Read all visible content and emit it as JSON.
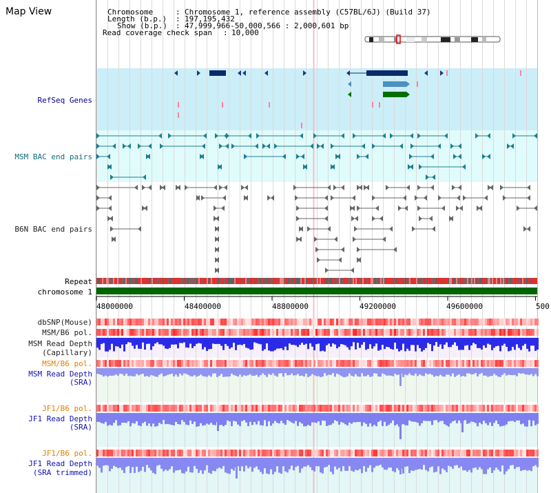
{
  "page_title": "Map View",
  "info": {
    "chromosome_label": "Chromosome",
    "chromosome_value": "Chromosome 1, reference assembly (C57BL/6J) (Build 37)",
    "length_label": "Length (b.p.)",
    "length_value": "197,195,432",
    "show_label": "Show (b.p.)",
    "show_value": "47,999,966-50,000,566 : 2,000,601 bp",
    "coverage_label": "Read coverage check span",
    "coverage_value": "10,000"
  },
  "tracks": {
    "refseq": "RefSeq Genes",
    "msm_bac": "MSM BAC end pairs",
    "b6n_bac": "B6N BAC end pairs",
    "repeat": "Repeat",
    "chromosome": "chromosome 1",
    "dbsnp": "dbSNP(Mouse)",
    "msm_b6_pol_1": "MSM/B6 pol.",
    "msm_read_depth_cap_1": "MSM Read Depth",
    "msm_read_depth_cap_2": "(Capillary)",
    "msm_b6_pol_2": "MSM/B6 pol.",
    "msm_read_depth_sra_1": "MSM Read Depth",
    "msm_read_depth_sra_2": "(SRA)",
    "jf1_b6_pol_1": "JF1/B6 pol.",
    "jf1_read_depth_sra_1": "JF1 Read Depth",
    "jf1_read_depth_sra_2": "(SRA)",
    "jf1_b6_pol_2": "JF1/B6 pol.",
    "jf1_read_depth_trim_1": "JF1 Read Depth",
    "jf1_read_depth_trim_2": "(SRA trimmed)"
  },
  "axis": {
    "ticks": [
      "48000000",
      "48400000",
      "48800000",
      "49200000",
      "49600000",
      "500"
    ]
  },
  "colors": {
    "refseq_bg": "#cceef8",
    "msm_bg": "#e0fbfb",
    "sra_bg": "#eef8ee",
    "jf1_bg": "#e4f6f6",
    "cap_bg": "#f7f0fa",
    "chromosome_bar": "#006400",
    "depth_bar": "#3333ee"
  }
}
